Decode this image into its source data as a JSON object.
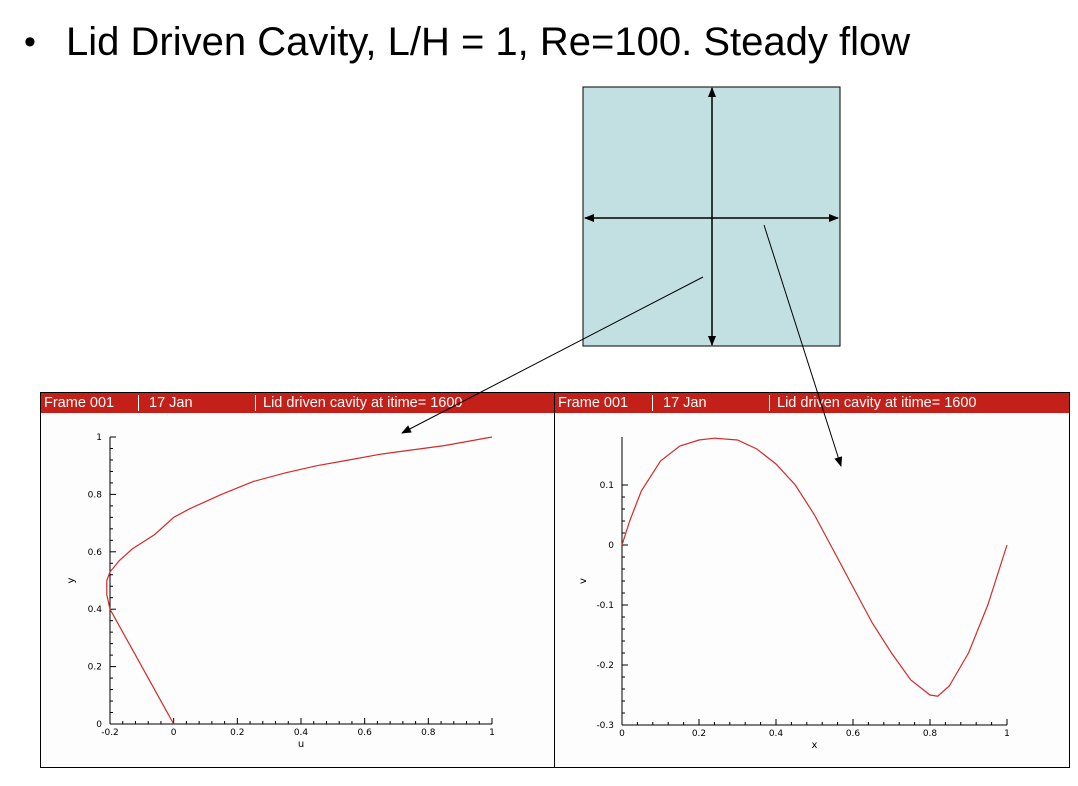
{
  "slide": {
    "bullet": "•",
    "title": "Lid Driven Cavity, L/H = 1, Re=100.  Steady flow"
  },
  "colors": {
    "cavity_fill": "#c2e0e2",
    "header_bg": "#c4201a",
    "curve": "#d42a2a",
    "header_text": "#ffffff"
  },
  "panels": [
    {
      "frame": "Frame 001",
      "date": "17 Jan",
      "caption": "Lid driven cavity at itime= 1600"
    },
    {
      "frame": "Frame 001",
      "date": "17 Jan",
      "caption": "Lid driven cavity at itime= 1600"
    }
  ],
  "chart_data": [
    {
      "type": "line",
      "xlabel": "u",
      "ylabel": "y",
      "xlim": [
        -0.2,
        1
      ],
      "ylim": [
        0,
        1
      ],
      "xticks": [
        -0.2,
        0,
        0.2,
        0.4,
        0.6,
        0.8,
        1
      ],
      "xtick_labels": [
        "-0.2",
        "0",
        "0.2",
        "0.4",
        "0.6",
        "0.8",
        "1"
      ],
      "yticks": [
        0,
        0.2,
        0.4,
        0.6,
        0.8,
        1
      ],
      "ytick_labels": [
        "0",
        "0.2",
        "0.4",
        "0.6",
        "0.8",
        "1"
      ],
      "series": [
        {
          "x": [
            0,
            -0.03,
            -0.06,
            -0.09,
            -0.12,
            -0.15,
            -0.18,
            -0.2,
            -0.21,
            -0.21,
            -0.2,
            -0.17,
            -0.13,
            -0.06,
            0,
            0.05,
            0.15,
            0.25,
            0.35,
            0.45,
            0.55,
            0.65,
            0.75,
            0.85,
            0.95,
            1.0
          ],
          "y": [
            0,
            0.06,
            0.12,
            0.18,
            0.24,
            0.3,
            0.36,
            0.4,
            0.45,
            0.5,
            0.53,
            0.57,
            0.61,
            0.66,
            0.72,
            0.75,
            0.8,
            0.845,
            0.875,
            0.9,
            0.92,
            0.94,
            0.955,
            0.97,
            0.99,
            1.0
          ]
        }
      ]
    },
    {
      "type": "line",
      "xlabel": "x",
      "ylabel": "v",
      "xlim": [
        0,
        1
      ],
      "ylim": [
        -0.3,
        0.18
      ],
      "xticks": [
        0,
        0.2,
        0.4,
        0.6,
        0.8,
        1
      ],
      "xtick_labels": [
        "0",
        "0.2",
        "0.4",
        "0.6",
        "0.8",
        "1"
      ],
      "yticks": [
        -0.3,
        -0.2,
        -0.1,
        0,
        0.1
      ],
      "ytick_labels": [
        "-0.3",
        "-0.2",
        "-0.1",
        "0",
        "0.1"
      ],
      "series": [
        {
          "x": [
            0,
            0.02,
            0.05,
            0.1,
            0.15,
            0.2,
            0.24,
            0.3,
            0.35,
            0.4,
            0.45,
            0.5,
            0.55,
            0.6,
            0.65,
            0.7,
            0.75,
            0.8,
            0.82,
            0.85,
            0.9,
            0.95,
            1.0
          ],
          "y": [
            0,
            0.04,
            0.09,
            0.14,
            0.165,
            0.175,
            0.178,
            0.175,
            0.16,
            0.135,
            0.1,
            0.05,
            -0.01,
            -0.07,
            -0.13,
            -0.18,
            -0.225,
            -0.25,
            -0.252,
            -0.235,
            -0.18,
            -0.1,
            0.0
          ]
        }
      ]
    }
  ]
}
